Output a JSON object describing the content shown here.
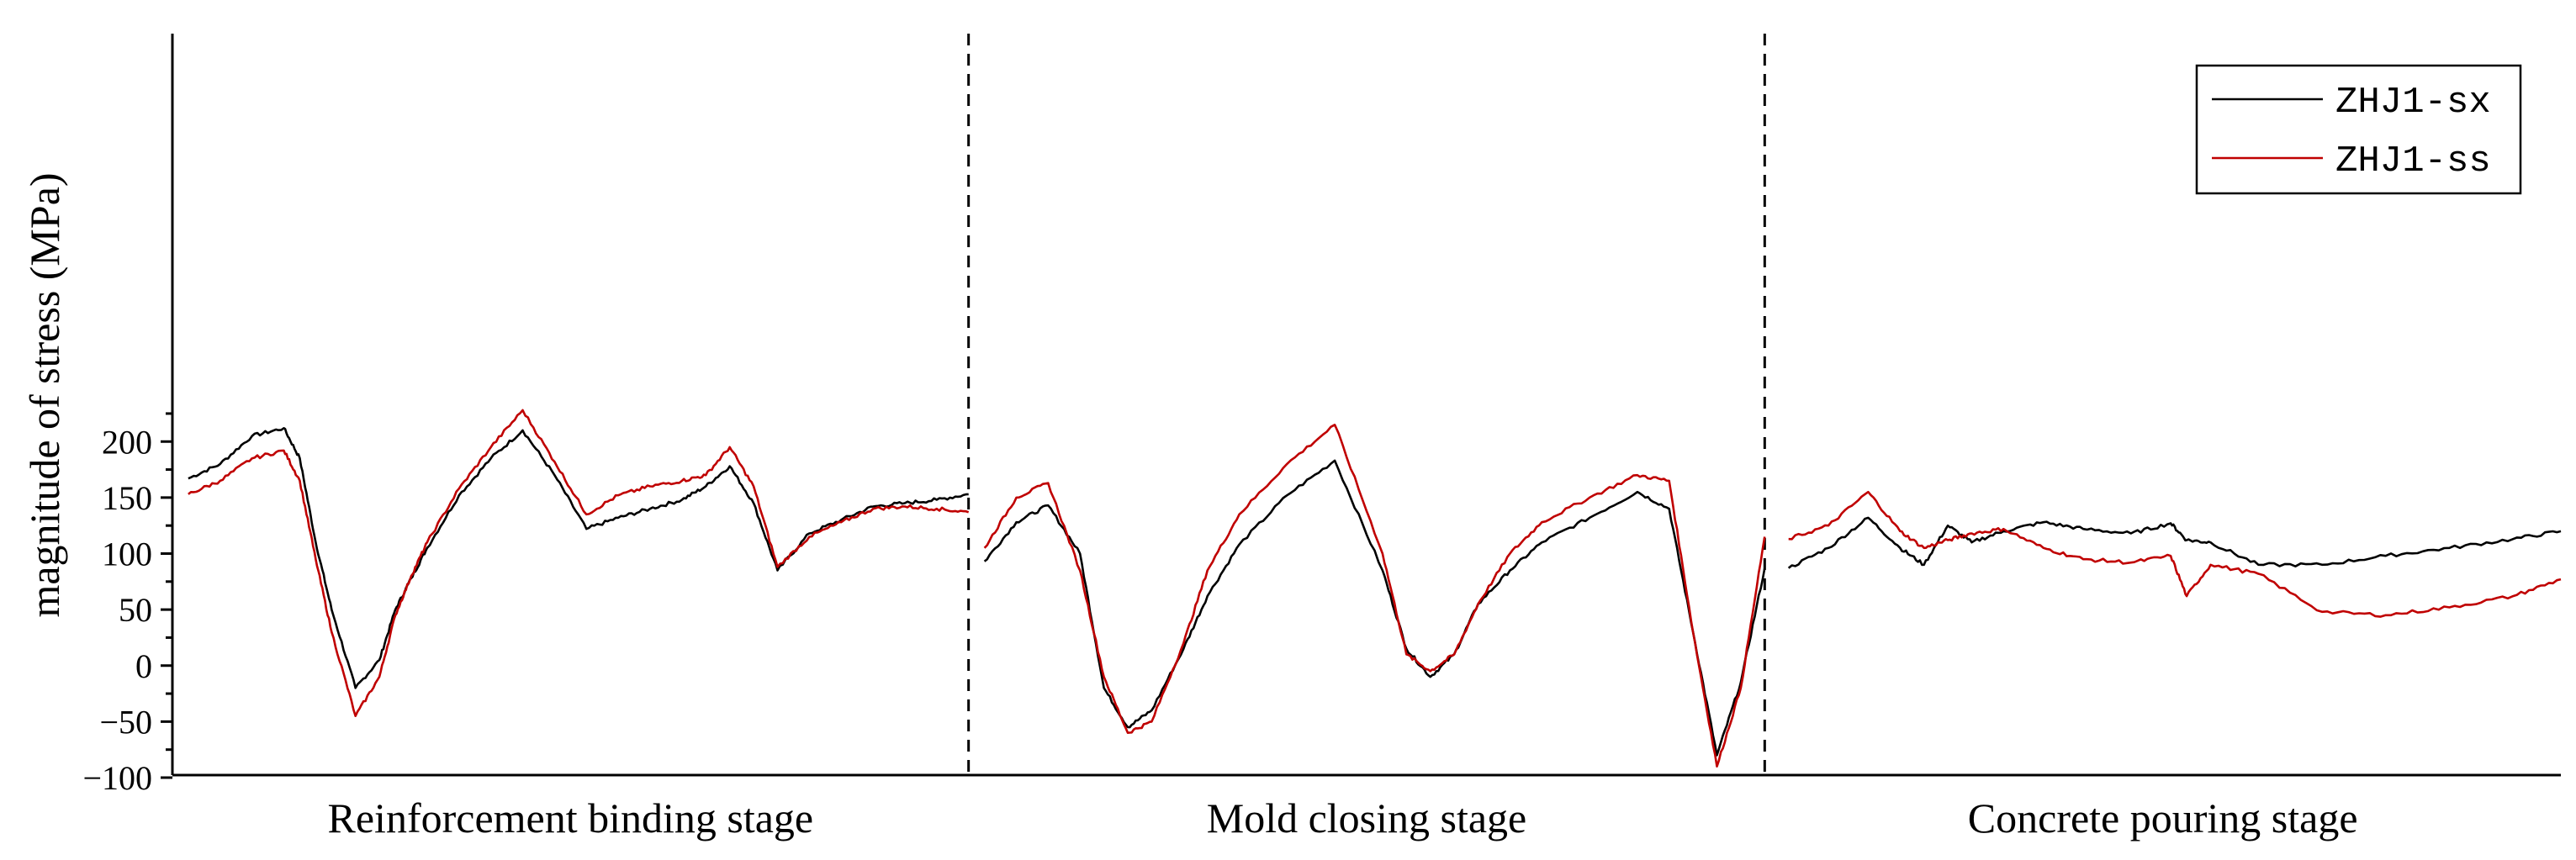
{
  "chart_data": {
    "type": "line",
    "title": "",
    "xlabel": "",
    "ylabel": "magnitude of stress (MPa)",
    "ylim": [
      -100,
      230
    ],
    "yticks": [
      -100,
      -50,
      0,
      50,
      100,
      150,
      200
    ],
    "grid": false,
    "legend_position": "top-right",
    "x_range": [
      0,
      3
    ],
    "stages": [
      {
        "label": "Reinforcement binding stage",
        "x_start": 0,
        "x_end": 1
      },
      {
        "label": "Mold closing stage",
        "x_start": 1,
        "x_end": 2
      },
      {
        "label": "Concrete pouring stage",
        "x_start": 2,
        "x_end": 3
      }
    ],
    "stage_dividers": [
      1,
      2
    ],
    "series": [
      {
        "name": "ZHJ1-sx",
        "color": "#000000",
        "segments": [
          {
            "x": [
              0.02,
              0.06,
              0.1,
              0.14,
              0.16,
              0.18,
              0.2,
              0.23,
              0.26,
              0.28,
              0.3,
              0.32,
              0.36,
              0.4,
              0.44,
              0.48,
              0.52,
              0.56,
              0.6,
              0.64,
              0.67,
              0.7,
              0.73,
              0.76,
              0.8,
              0.84,
              0.88,
              0.92,
              0.96,
              1.0
            ],
            "y": [
              167,
              180,
              205,
              212,
              185,
              110,
              50,
              -20,
              5,
              50,
              78,
              105,
              152,
              185,
              210,
              170,
              122,
              132,
              140,
              148,
              160,
              178,
              145,
              85,
              118,
              130,
              142,
              145,
              148,
              153
            ]
          },
          {
            "x": [
              1.02,
              1.06,
              1.1,
              1.14,
              1.17,
              1.2,
              1.23,
              1.27,
              1.3,
              1.34,
              1.4,
              1.46,
              1.52,
              1.55,
              1.58,
              1.61,
              1.64,
              1.68,
              1.72,
              1.78,
              1.84,
              1.88,
              1.91,
              1.94,
              1.97,
              2.0
            ],
            "y": [
              93,
              128,
              143,
              100,
              -20,
              -55,
              -40,
              15,
              62,
              108,
              152,
              183,
              85,
              15,
              -10,
              10,
              55,
              85,
              110,
              132,
              155,
              140,
              30,
              -80,
              -15,
              87
            ]
          },
          {
            "x": [
              2.03,
              2.08,
              2.13,
              2.17,
              2.2,
              2.23,
              2.26,
              2.3,
              2.35,
              2.4,
              2.46,
              2.51,
              2.53,
              2.56,
              2.62,
              2.7,
              2.78,
              2.86,
              2.94,
              3.0
            ],
            "y": [
              87,
              105,
              132,
              105,
              90,
              125,
              110,
              120,
              128,
              122,
              118,
              127,
              112,
              110,
              90,
              90,
              98,
              105,
              113,
              120
            ]
          }
        ]
      },
      {
        "name": "ZHJ1-ss",
        "color": "#c00000",
        "segments": [
          {
            "x": [
              0.02,
              0.06,
              0.1,
              0.14,
              0.16,
              0.18,
              0.2,
              0.23,
              0.26,
              0.28,
              0.3,
              0.32,
              0.36,
              0.4,
              0.44,
              0.48,
              0.52,
              0.56,
              0.6,
              0.64,
              0.67,
              0.7,
              0.73,
              0.76,
              0.8,
              0.84,
              0.88,
              0.92,
              0.96,
              1.0
            ],
            "y": [
              153,
              165,
              185,
              192,
              165,
              95,
              30,
              -45,
              -10,
              45,
              80,
              110,
              158,
              195,
              228,
              182,
              135,
              152,
              160,
              165,
              170,
              195,
              160,
              88,
              115,
              128,
              140,
              142,
              140,
              137
            ]
          },
          {
            "x": [
              1.02,
              1.06,
              1.1,
              1.14,
              1.17,
              1.2,
              1.23,
              1.27,
              1.3,
              1.34,
              1.4,
              1.46,
              1.52,
              1.55,
              1.58,
              1.61,
              1.64,
              1.68,
              1.72,
              1.78,
              1.84,
              1.88,
              1.91,
              1.94,
              1.97,
              2.0
            ],
            "y": [
              105,
              150,
              163,
              85,
              -10,
              -60,
              -50,
              20,
              85,
              135,
              180,
              215,
              100,
              10,
              -5,
              10,
              55,
              100,
              128,
              150,
              170,
              165,
              30,
              -90,
              -20,
              115
            ]
          },
          {
            "x": [
              2.03,
              2.08,
              2.13,
              2.17,
              2.2,
              2.23,
              2.26,
              2.3,
              2.35,
              2.4,
              2.46,
              2.51,
              2.53,
              2.56,
              2.62,
              2.7,
              2.78,
              2.86,
              2.94,
              3.0
            ],
            "y": [
              113,
              125,
              155,
              120,
              105,
              112,
              118,
              122,
              105,
              95,
              92,
              98,
              62,
              90,
              82,
              48,
              45,
              52,
              62,
              77
            ]
          }
        ]
      }
    ]
  }
}
